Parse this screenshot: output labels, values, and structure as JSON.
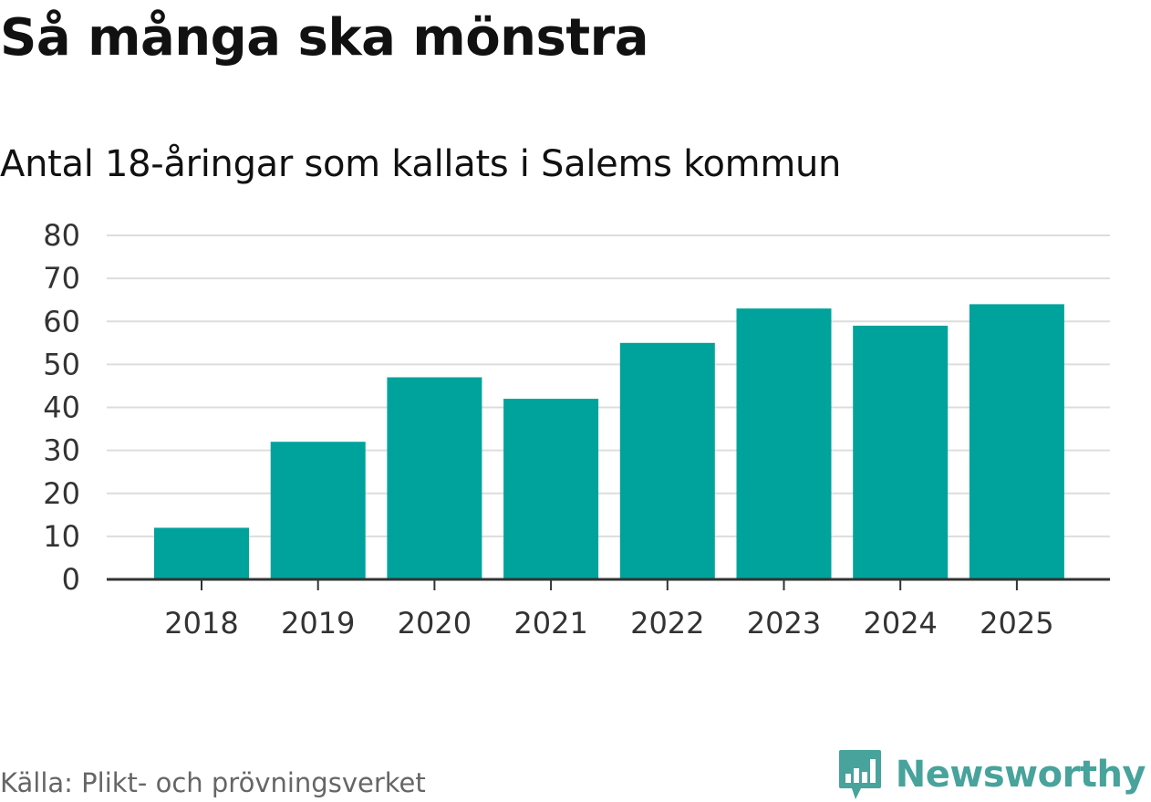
{
  "title": "Så många ska mönstra",
  "subtitle": "Antal 18-åringar som kallats i Salems kommun",
  "source": "Källa: Plikt- och prövningsverket",
  "brand": {
    "name": "Newsworthy",
    "icon": "newsworthy-logo-icon",
    "color": "#47a39b"
  },
  "colors": {
    "bar": "#00a39b",
    "grid": "#dddddd",
    "axis": "#333333",
    "tick_text": "#333333"
  },
  "chart_data": {
    "type": "bar",
    "title": "Så många ska mönstra",
    "subtitle": "Antal 18-åringar som kallats i Salems kommun",
    "categories": [
      "2018",
      "2019",
      "2020",
      "2021",
      "2022",
      "2023",
      "2024",
      "2025"
    ],
    "values": [
      12,
      32,
      47,
      42,
      55,
      63,
      59,
      64
    ],
    "xlabel": "",
    "ylabel": "",
    "ylim": [
      0,
      80
    ],
    "yticks": [
      0,
      10,
      20,
      30,
      40,
      50,
      60,
      70,
      80
    ],
    "grid": true,
    "legend": "none"
  }
}
